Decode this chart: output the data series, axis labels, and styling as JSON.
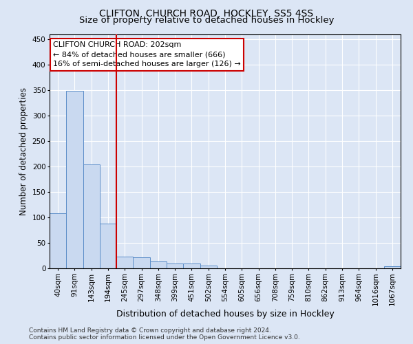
{
  "title": "CLIFTON, CHURCH ROAD, HOCKLEY, SS5 4SS",
  "subtitle": "Size of property relative to detached houses in Hockley",
  "xlabel": "Distribution of detached houses by size in Hockley",
  "ylabel": "Number of detached properties",
  "categories": [
    "40sqm",
    "91sqm",
    "143sqm",
    "194sqm",
    "245sqm",
    "297sqm",
    "348sqm",
    "399sqm",
    "451sqm",
    "502sqm",
    "554sqm",
    "605sqm",
    "656sqm",
    "708sqm",
    "759sqm",
    "810sqm",
    "862sqm",
    "913sqm",
    "964sqm",
    "1016sqm",
    "1067sqm"
  ],
  "values": [
    108,
    349,
    204,
    88,
    23,
    22,
    14,
    9,
    9,
    5,
    0,
    0,
    0,
    0,
    0,
    0,
    0,
    0,
    0,
    0,
    4
  ],
  "bar_color": "#c9d9f0",
  "bar_edge_color": "#5b8dc8",
  "vline_x_index": 3,
  "vline_color": "#cc0000",
  "annotation_line1": "CLIFTON CHURCH ROAD: 202sqm",
  "annotation_line2": "← 84% of detached houses are smaller (666)",
  "annotation_line3": "16% of semi-detached houses are larger (126) →",
  "annotation_box_color": "#ffffff",
  "annotation_box_edge_color": "#cc0000",
  "ylim": [
    0,
    460
  ],
  "yticks": [
    0,
    50,
    100,
    150,
    200,
    250,
    300,
    350,
    400,
    450
  ],
  "background_color": "#dce6f5",
  "fig_background_color": "#dce6f5",
  "footer_text": "Contains HM Land Registry data © Crown copyright and database right 2024.\nContains public sector information licensed under the Open Government Licence v3.0.",
  "title_fontsize": 10,
  "subtitle_fontsize": 9.5,
  "xlabel_fontsize": 9,
  "ylabel_fontsize": 8.5,
  "tick_fontsize": 7.5,
  "annotation_fontsize": 8,
  "footer_fontsize": 6.5
}
